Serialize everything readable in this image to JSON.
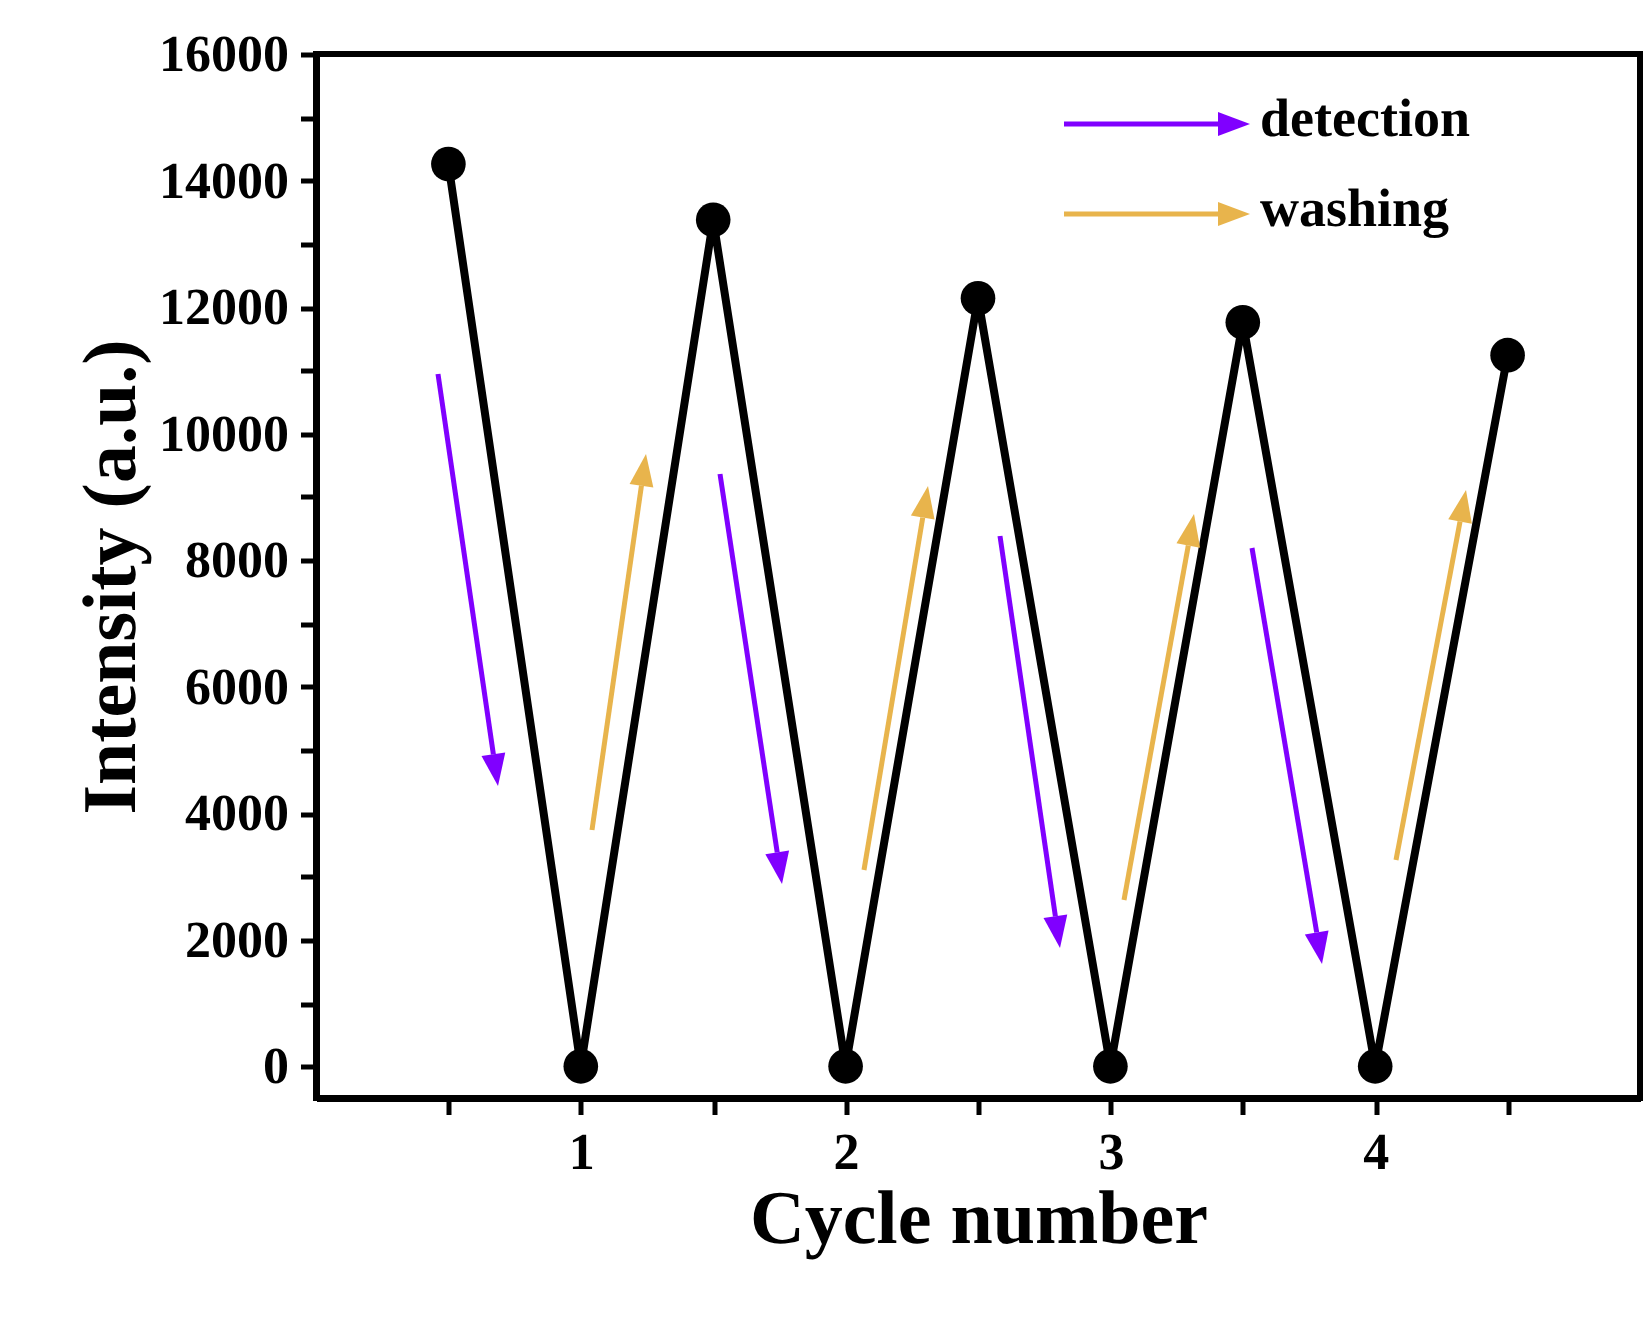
{
  "chart_data": {
    "type": "line",
    "xlabel": "Cycle number",
    "ylabel": "Intensity (a.u.)",
    "x": [
      0.5,
      1,
      1.5,
      2,
      2.5,
      3,
      3.5,
      4,
      4.5
    ],
    "series": [
      {
        "color": "#000000",
        "values": [
          14260,
          0,
          13380,
          0,
          12140,
          0,
          11760,
          0,
          11240
        ]
      }
    ],
    "xlim": [
      0,
      5
    ],
    "xticks": [
      {
        "value": 0.5,
        "label": null
      },
      1,
      {
        "value": 1.5,
        "label": null
      },
      2,
      {
        "value": 2.5,
        "label": null
      },
      3,
      {
        "value": 3.5,
        "label": null
      },
      4,
      {
        "value": 4.5,
        "label": null
      }
    ],
    "ylim": [
      -500,
      16000
    ],
    "yticks": [
      0,
      {
        "value": 1000,
        "label": null
      },
      2000,
      {
        "value": 3000,
        "label": null
      },
      4000,
      {
        "value": 5000,
        "label": null
      },
      6000,
      {
        "value": 7000,
        "label": null
      },
      8000,
      {
        "value": 9000,
        "label": null
      },
      10000,
      {
        "value": 11000,
        "label": null
      },
      12000,
      {
        "value": 13000,
        "label": null
      },
      14000,
      {
        "value": 15000,
        "label": null
      },
      16000
    ],
    "marker": "circle",
    "line_style": "solid",
    "grid": false,
    "legend": false,
    "annotations": [
      "detection",
      "washing"
    ]
  }
}
